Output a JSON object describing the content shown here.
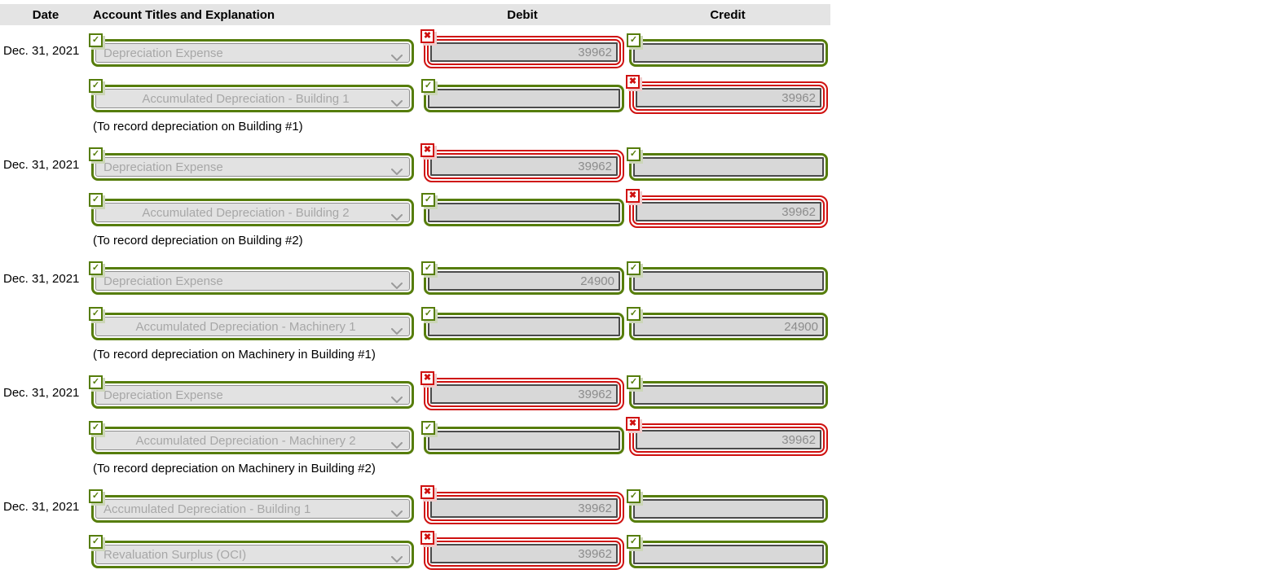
{
  "header": {
    "date": "Date",
    "account": "Account Titles and Explanation",
    "debit": "Debit",
    "credit": "Credit"
  },
  "icons": {
    "correct": "✓",
    "incorrect": "✖"
  },
  "colors": {
    "correct": "#567d0b",
    "incorrect": "#cf1110"
  },
  "entries": [
    {
      "date": "Dec. 31, 2021",
      "explanation": "(To record depreciation on Building #1)",
      "lines": [
        {
          "account": {
            "value": "Depreciation Expense",
            "status": "correct",
            "align": "left"
          },
          "debit": {
            "value": "39962",
            "status": "incorrect"
          },
          "credit": {
            "value": "",
            "status": "correct"
          }
        },
        {
          "account": {
            "value": "Accumulated Depreciation - Building 1",
            "status": "correct",
            "align": "center"
          },
          "debit": {
            "value": "",
            "status": "correct"
          },
          "credit": {
            "value": "39962",
            "status": "incorrect"
          }
        }
      ]
    },
    {
      "date": "Dec. 31, 2021",
      "explanation": "(To record depreciation on Building #2)",
      "lines": [
        {
          "account": {
            "value": "Depreciation Expense",
            "status": "correct",
            "align": "left"
          },
          "debit": {
            "value": "39962",
            "status": "incorrect"
          },
          "credit": {
            "value": "",
            "status": "correct"
          }
        },
        {
          "account": {
            "value": "Accumulated Depreciation - Building 2",
            "status": "correct",
            "align": "center"
          },
          "debit": {
            "value": "",
            "status": "correct"
          },
          "credit": {
            "value": "39962",
            "status": "incorrect"
          }
        }
      ]
    },
    {
      "date": "Dec. 31, 2021",
      "explanation": "(To record depreciation on Machinery in Building #1)",
      "lines": [
        {
          "account": {
            "value": "Depreciation Expense",
            "status": "correct",
            "align": "left"
          },
          "debit": {
            "value": "24900",
            "status": "correct"
          },
          "credit": {
            "value": "",
            "status": "correct"
          }
        },
        {
          "account": {
            "value": "Accumulated Depreciation - Machinery 1",
            "status": "correct",
            "align": "center"
          },
          "debit": {
            "value": "",
            "status": "correct"
          },
          "credit": {
            "value": "24900",
            "status": "correct"
          }
        }
      ]
    },
    {
      "date": "Dec. 31, 2021",
      "explanation": "(To record depreciation on Machinery in Building #2)",
      "lines": [
        {
          "account": {
            "value": "Depreciation Expense",
            "status": "correct",
            "align": "left"
          },
          "debit": {
            "value": "39962",
            "status": "incorrect"
          },
          "credit": {
            "value": "",
            "status": "correct"
          }
        },
        {
          "account": {
            "value": "Accumulated Depreciation - Machinery 2",
            "status": "correct",
            "align": "center"
          },
          "debit": {
            "value": "",
            "status": "correct"
          },
          "credit": {
            "value": "39962",
            "status": "incorrect"
          }
        }
      ]
    },
    {
      "date": "Dec. 31, 2021",
      "explanation": "",
      "lines": [
        {
          "account": {
            "value": "Accumulated Depreciation - Building 1",
            "status": "correct",
            "align": "left"
          },
          "debit": {
            "value": "39962",
            "status": "incorrect"
          },
          "credit": {
            "value": "",
            "status": "correct"
          }
        },
        {
          "account": {
            "value": "Revaluation Surplus (OCI)",
            "status": "correct",
            "align": "left"
          },
          "debit": {
            "value": "39962",
            "status": "incorrect"
          },
          "credit": {
            "value": "",
            "status": "correct"
          }
        }
      ]
    }
  ]
}
